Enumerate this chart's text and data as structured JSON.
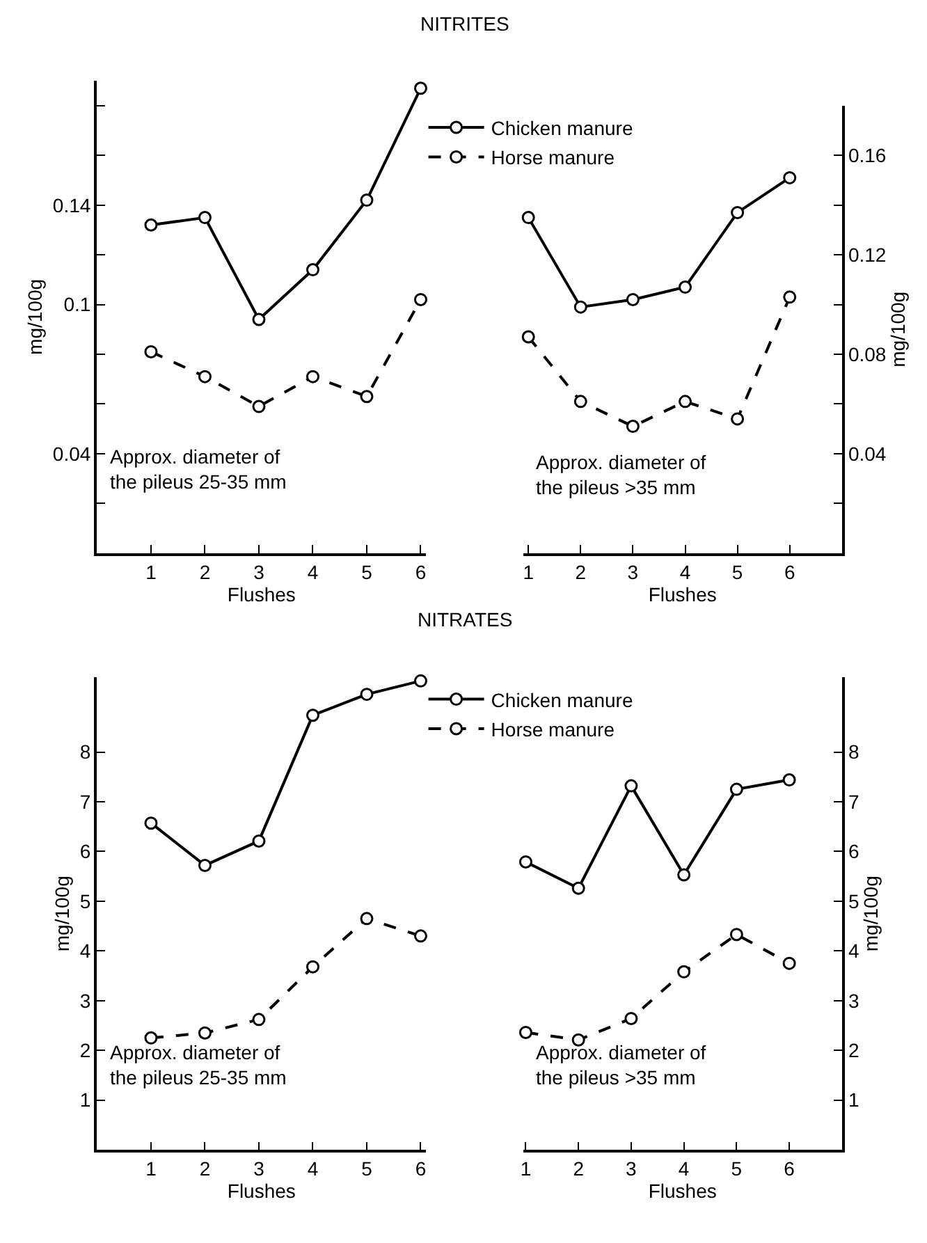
{
  "chart_data": [
    {
      "type": "line",
      "title": "NITRITES",
      "x": [
        1,
        2,
        3,
        4,
        5,
        6
      ],
      "xlabel": "Flushes",
      "ylabel": "mg/100g",
      "xlim": [
        0,
        6.1
      ],
      "xticks": [
        1,
        2,
        3,
        4,
        5,
        6
      ],
      "ylim": [
        0,
        0.19
      ],
      "yticks": [
        {
          "value": 0.02,
          "label": null
        },
        {
          "value": 0.04,
          "label": "0.04"
        },
        {
          "value": 0.06,
          "label": null
        },
        {
          "value": 0.08,
          "label": null
        },
        {
          "value": 0.1,
          "label": "0.1"
        },
        {
          "value": 0.12,
          "label": null
        },
        {
          "value": 0.14,
          "label": "0.14"
        },
        {
          "value": 0.16,
          "label": null
        },
        {
          "value": 0.18,
          "label": null
        }
      ],
      "marker": "circle",
      "grid": false,
      "legend": false,
      "annotations": [
        "Approx. diameter of\nthe pileus 25-35 mm"
      ],
      "series": [
        {
          "color": "#000000",
          "line_style": "solid",
          "values": [
            0.132,
            0.135,
            0.094,
            0.114,
            0.142,
            0.187
          ]
        },
        {
          "color": "#000000",
          "line_style": "dashed",
          "values": [
            0.081,
            0.071,
            0.059,
            0.071,
            0.063,
            0.102
          ]
        }
      ]
    },
    {
      "type": "line",
      "x": [
        1,
        2,
        3,
        4,
        5,
        6
      ],
      "xlabel": "Flushes",
      "y2label": "mg/100g",
      "xlim": [
        0.9,
        7
      ],
      "xticks": [
        1,
        2,
        3,
        4,
        5,
        6
      ],
      "y2lim": [
        0,
        0.18
      ],
      "y2ticks": [
        {
          "value": 0.02,
          "label": null
        },
        {
          "value": 0.04,
          "label": "0.04"
        },
        {
          "value": 0.06,
          "label": null
        },
        {
          "value": 0.08,
          "label": "0.08"
        },
        {
          "value": 0.1,
          "label": null
        },
        {
          "value": 0.12,
          "label": "0.12"
        },
        {
          "value": 0.14,
          "label": null
        },
        {
          "value": 0.16,
          "label": "0.16"
        }
      ],
      "marker": "circle",
      "grid": false,
      "legend": "top left",
      "annotations": [
        "Approx. diameter of\nthe pileus >35 mm"
      ],
      "series": [
        {
          "name": "Chicken manure",
          "axis": "y2",
          "color": "#000000",
          "line_style": "solid",
          "values": [
            0.135,
            0.099,
            0.102,
            0.107,
            0.137,
            0.151
          ]
        },
        {
          "name": "Horse manure",
          "axis": "y2",
          "color": "#000000",
          "line_style": "dashed",
          "values": [
            0.087,
            0.061,
            0.051,
            0.061,
            0.054,
            0.103
          ]
        }
      ]
    },
    {
      "type": "line",
      "title": "NITRATES",
      "x": [
        1,
        2,
        3,
        4,
        5,
        6
      ],
      "xlabel": "Flushes",
      "ylabel": "mg/100g",
      "xlim": [
        0,
        6.1
      ],
      "xticks": [
        1,
        2,
        3,
        4,
        5,
        6
      ],
      "ylim": [
        0,
        9.5
      ],
      "yticks": [
        1,
        2,
        3,
        4,
        5,
        6,
        7,
        8
      ],
      "marker": "circle",
      "grid": false,
      "legend": false,
      "annotations": [
        "Approx. diameter of\nthe pileus 25-35 mm"
      ],
      "series": [
        {
          "color": "#000000",
          "line_style": "solid",
          "values": [
            6.57,
            5.72,
            6.21,
            8.74,
            9.16,
            9.43
          ]
        },
        {
          "color": "#000000",
          "line_style": "dashed",
          "values": [
            2.25,
            2.35,
            2.62,
            3.68,
            4.65,
            4.3
          ]
        }
      ]
    },
    {
      "type": "line",
      "x": [
        1,
        2,
        3,
        4,
        5,
        6
      ],
      "xlabel": "Flushes",
      "y2label": "mg/100g",
      "xlim": [
        0.95,
        7
      ],
      "xticks": [
        1,
        2,
        3,
        4,
        5,
        6
      ],
      "y2lim": [
        0,
        9.5
      ],
      "y2ticks": [
        1,
        2,
        3,
        4,
        5,
        6,
        7,
        8
      ],
      "marker": "circle",
      "grid": false,
      "legend": "top left",
      "annotations": [
        "Approx. diameter of\nthe pileus >35 mm"
      ],
      "series": [
        {
          "name": "Chicken manure",
          "axis": "y2",
          "color": "#000000",
          "line_style": "solid",
          "values": [
            5.79,
            5.26,
            7.32,
            5.53,
            7.25,
            7.44
          ]
        },
        {
          "name": "Horse manure",
          "axis": "y2",
          "color": "#000000",
          "line_style": "dashed",
          "values": [
            2.36,
            2.21,
            2.64,
            3.58,
            4.33,
            3.75
          ]
        }
      ]
    }
  ]
}
